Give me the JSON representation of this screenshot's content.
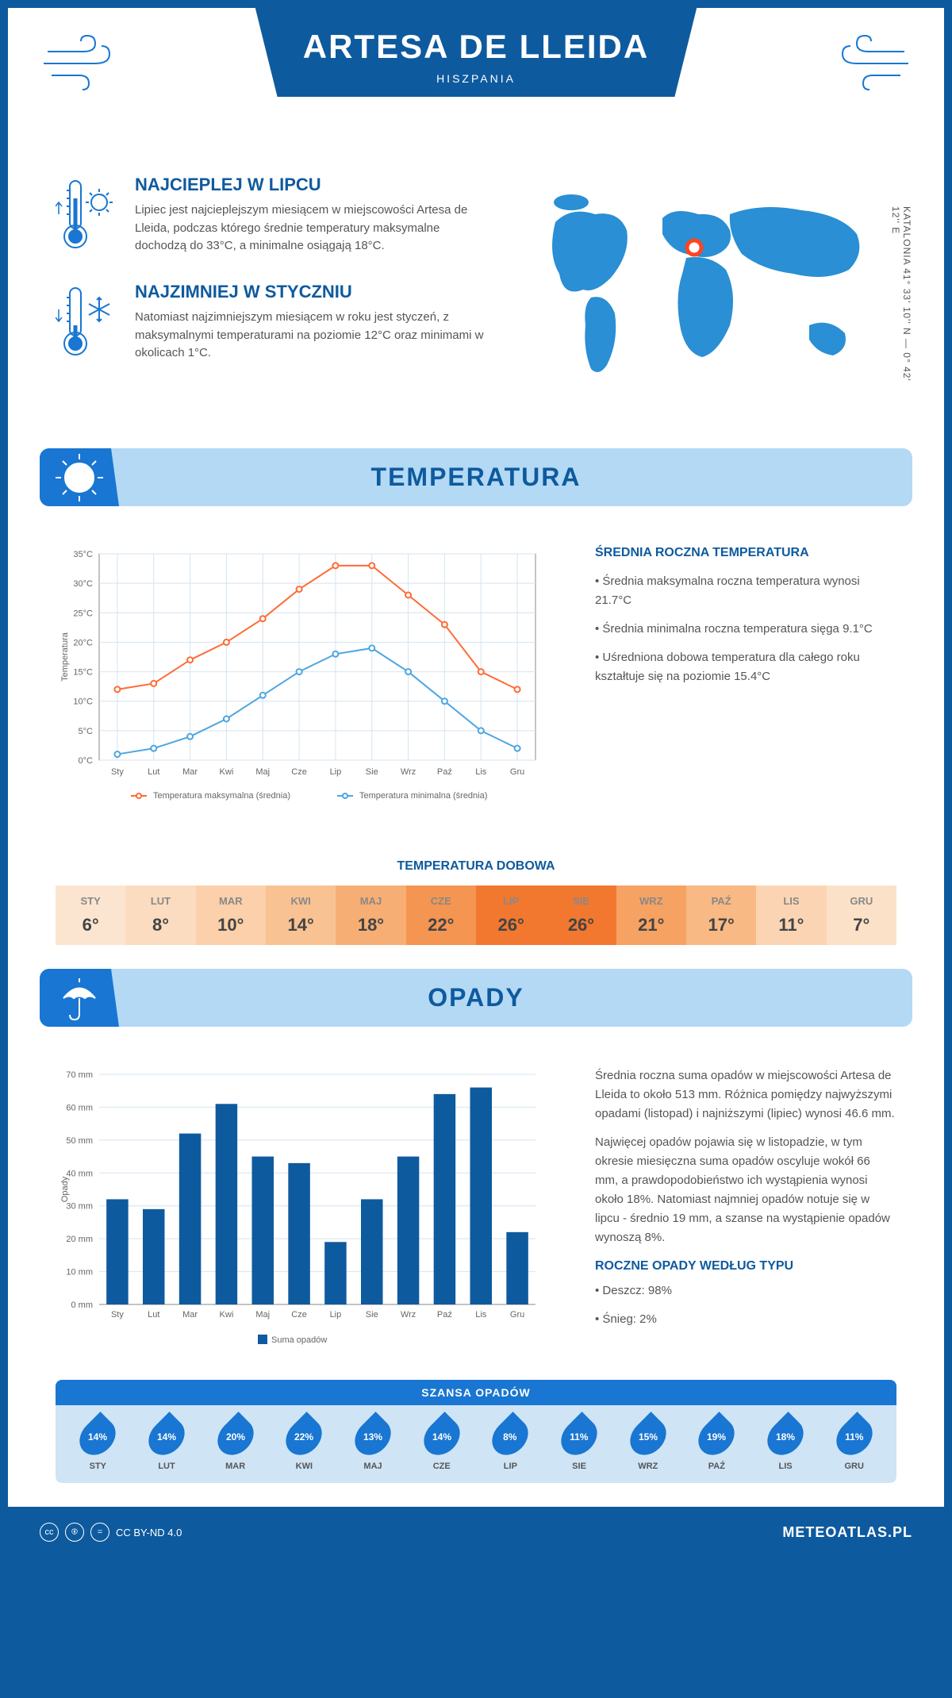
{
  "header": {
    "title": "ARTESA DE LLEIDA",
    "subtitle": "HISZPANIA"
  },
  "coords": "KATALONIA   41° 33' 10'' N — 0° 42' 12'' E",
  "facts": {
    "hot": {
      "title": "NAJCIEPLEJ W LIPCU",
      "text": "Lipiec jest najcieplejszym miesiącem w miejscowości Artesa de Lleida, podczas którego średnie temperatury maksymalne dochodzą do 33°C, a minimalne osiągają 18°C."
    },
    "cold": {
      "title": "NAJZIMNIEJ W STYCZNIU",
      "text": "Natomiast najzimniejszym miesiącem w roku jest styczeń, z maksymalnymi temperaturami na poziomie 12°C oraz minimami w okolicach 1°C."
    }
  },
  "sections": {
    "temp_title": "TEMPERATURA",
    "precip_title": "OPADY"
  },
  "temp_chart": {
    "type": "line",
    "months": [
      "Sty",
      "Lut",
      "Mar",
      "Kwi",
      "Maj",
      "Cze",
      "Lip",
      "Sie",
      "Wrz",
      "Paź",
      "Lis",
      "Gru"
    ],
    "ylabel": "Temperatura",
    "ylim": [
      0,
      35
    ],
    "ytick_step": 5,
    "series": {
      "max": {
        "label": "Temperatura maksymalna (średnia)",
        "color": "#ff6b35",
        "values": [
          12,
          13,
          17,
          20,
          24,
          29,
          33,
          33,
          28,
          23,
          15,
          12
        ]
      },
      "min": {
        "label": "Temperatura minimalna (średnia)",
        "color": "#4da6e0",
        "values": [
          1,
          2,
          4,
          7,
          11,
          15,
          18,
          19,
          15,
          10,
          5,
          2
        ]
      }
    },
    "grid_color": "#d4e4f0",
    "background_color": "#ffffff"
  },
  "temp_summary": {
    "title": "ŚREDNIA ROCZNA TEMPERATURA",
    "items": [
      "• Średnia maksymalna roczna temperatura wynosi 21.7°C",
      "• Średnia minimalna roczna temperatura sięga 9.1°C",
      "• Uśredniona dobowa temperatura dla całego roku kształtuje się na poziomie 15.4°C"
    ]
  },
  "daily": {
    "title": "TEMPERATURA DOBOWA",
    "months": [
      "STY",
      "LUT",
      "MAR",
      "KWI",
      "MAJ",
      "CZE",
      "LIP",
      "SIE",
      "WRZ",
      "PAŹ",
      "LIS",
      "GRU"
    ],
    "values": [
      "6°",
      "8°",
      "10°",
      "14°",
      "18°",
      "22°",
      "26°",
      "26°",
      "21°",
      "17°",
      "11°",
      "7°"
    ],
    "colors": [
      "#fce5d0",
      "#fcdcc0",
      "#fbd0aa",
      "#f9c293",
      "#f7ae74",
      "#f59552",
      "#f27830",
      "#f27830",
      "#f6a263",
      "#f8b984",
      "#fbd5b3",
      "#fce1c9"
    ]
  },
  "precip_chart": {
    "type": "bar",
    "months": [
      "Sty",
      "Lut",
      "Mar",
      "Kwi",
      "Maj",
      "Cze",
      "Lip",
      "Sie",
      "Wrz",
      "Paź",
      "Lis",
      "Gru"
    ],
    "ylabel": "Opady",
    "ylim": [
      0,
      70
    ],
    "ytick_step": 10,
    "values": [
      32,
      29,
      52,
      61,
      45,
      43,
      19,
      32,
      45,
      64,
      66,
      22
    ],
    "bar_color": "#0e5a9e",
    "grid_color": "#d4e4f0",
    "legend_label": "Suma opadów"
  },
  "precip_text": {
    "p1": "Średnia roczna suma opadów w miejscowości Artesa de Lleida to około 513 mm. Różnica pomiędzy najwyższymi opadami (listopad) i najniższymi (lipiec) wynosi 46.6 mm.",
    "p2": "Najwięcej opadów pojawia się w listopadzie, w tym okresie miesięczna suma opadów oscyluje wokół 66 mm, a prawdopodobieństwo ich wystąpienia wynosi około 18%. Natomiast najmniej opadów notuje się w lipcu - średnio 19 mm, a szanse na wystąpienie opadów wynoszą 8%."
  },
  "chance": {
    "title": "SZANSA OPADÓW",
    "months": [
      "STY",
      "LUT",
      "MAR",
      "KWI",
      "MAJ",
      "CZE",
      "LIP",
      "SIE",
      "WRZ",
      "PAŹ",
      "LIS",
      "GRU"
    ],
    "values": [
      "14%",
      "14%",
      "20%",
      "22%",
      "13%",
      "14%",
      "8%",
      "11%",
      "15%",
      "19%",
      "18%",
      "11%"
    ]
  },
  "types": {
    "title": "ROCZNE OPADY WEDŁUG TYPU",
    "rain": "• Deszcz: 98%",
    "snow": "• Śnieg: 2%"
  },
  "footer": {
    "license": "CC BY-ND 4.0",
    "site": "METEOATLAS.PL"
  }
}
